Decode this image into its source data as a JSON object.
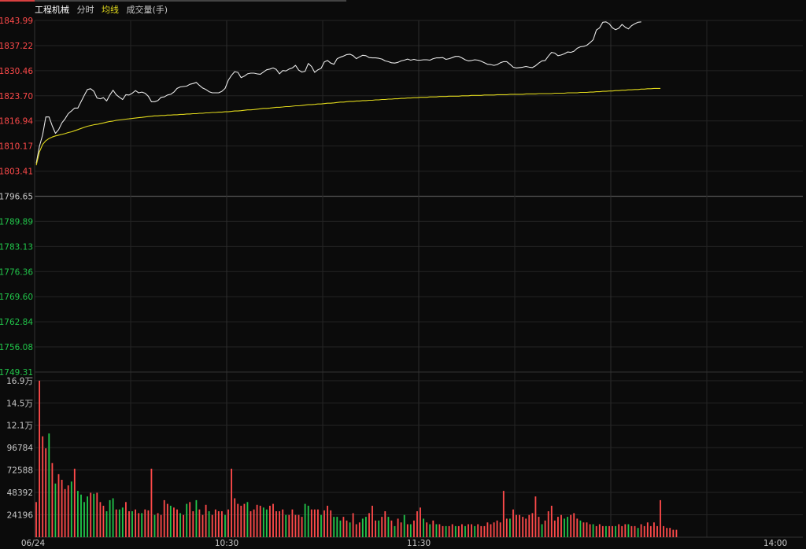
{
  "header": {
    "symbol": "工程机械",
    "mode": "分时",
    "avg_label": "均线",
    "volume_label": "成交量(手)"
  },
  "colors": {
    "up": "#ff4a4a",
    "down": "#21c54a",
    "neutral": "#c8c8c8",
    "price_line": "#e8e8e8",
    "avg_line": "#e0d81c",
    "grid": "#242424",
    "axis_line": "#333333",
    "pre_close_line": "#555555"
  },
  "chart_data": [
    {
      "type": "line",
      "title": "",
      "pre_close": 1796.65,
      "ylim": [
        1749.31,
        1843.99
      ],
      "y_ticks": [
        "1843.99",
        "1837.22",
        "1830.46",
        "1823.70",
        "1816.94",
        "1810.17",
        "1803.41",
        "1796.65",
        "1789.89",
        "1783.13",
        "1776.36",
        "1769.60",
        "1762.84",
        "1756.08",
        "1749.31"
      ],
      "x_tick_labels": [
        "06/24",
        "10:30",
        "11:30",
        "14:00"
      ],
      "x_minutes_total": 240,
      "series": [
        {
          "name": "",
          "values": [
            1805.5,
            1810.1,
            1813.2,
            1818.0,
            1818.0,
            1815.6,
            1813.6,
            1814.6,
            1816.4,
            1817.5,
            1818.9,
            1819.6,
            1820.4,
            1820.4,
            1822.1,
            1823.8,
            1825.4,
            1825.6,
            1824.9,
            1823.1,
            1822.9,
            1823.2,
            1822.3,
            1823.9,
            1825.2,
            1824.0,
            1823.3,
            1822.7,
            1824.0,
            1823.9,
            1824.4,
            1825.1,
            1824.5,
            1824.7,
            1824.4,
            1823.6,
            1822.1,
            1822.1,
            1822.4,
            1823.3,
            1823.4,
            1823.9,
            1824.1,
            1824.7,
            1825.7,
            1826.1,
            1826.2,
            1826.3,
            1826.8,
            1827.0,
            1827.3,
            1826.5,
            1825.8,
            1825.4,
            1824.8,
            1824.5,
            1824.5,
            1824.5,
            1824.9,
            1825.7,
            1827.9,
            1829.2,
            1830.2,
            1830.0,
            1828.6,
            1829.0,
            1829.6,
            1829.8,
            1829.8,
            1829.6,
            1829.5,
            1830.1,
            1830.7,
            1830.9,
            1831.2,
            1830.8,
            1829.6,
            1830.5,
            1830.4,
            1830.9,
            1831.2,
            1831.9,
            1830.6,
            1830.1,
            1830.3,
            1832.4,
            1831.6,
            1830.0,
            1830.7,
            1831.1,
            1832.8,
            1833.2,
            1832.5,
            1832.2,
            1833.7,
            1834.1,
            1834.4,
            1834.8,
            1834.9,
            1834.5,
            1833.7,
            1834.2,
            1834.6,
            1834.5,
            1834.0,
            1833.9,
            1833.9,
            1833.8,
            1833.6,
            1833.1,
            1832.9,
            1832.6,
            1832.5,
            1832.7,
            1833.1,
            1833.3,
            1833.6,
            1833.3,
            1833.5,
            1833.3,
            1833.3,
            1833.4,
            1833.4,
            1833.3,
            1833.7,
            1833.9,
            1833.9,
            1834.0,
            1833.5,
            1833.7,
            1834.0,
            1834.3,
            1834.3,
            1833.9,
            1833.4,
            1833.1,
            1833.2,
            1833.4,
            1833.3,
            1833.0,
            1832.6,
            1832.2,
            1832.1,
            1831.9,
            1832.1,
            1832.6,
            1832.9,
            1832.9,
            1832.2,
            1831.4,
            1831.2,
            1831.3,
            1831.4,
            1831.6,
            1831.4,
            1831.3,
            1831.8,
            1832.5,
            1833.1,
            1833.2,
            1834.4,
            1835.4,
            1835.2,
            1834.5,
            1834.7,
            1835.0,
            1835.5,
            1835.4,
            1835.7,
            1836.5,
            1836.9,
            1837.0,
            1837.3,
            1838.0,
            1838.8,
            1841.4,
            1842.0,
            1843.5,
            1843.6,
            1843.1,
            1842.0,
            1841.5,
            1841.9,
            1842.9,
            1842.2,
            1841.7,
            1842.6,
            1843.1,
            1843.5,
            1843.6
          ],
          "color_key": "price_line"
        },
        {
          "name": "",
          "values": [
            1805.0,
            1808.6,
            1810.6,
            1811.6,
            1812.2,
            1812.6,
            1812.9,
            1813.1,
            1813.3,
            1813.5,
            1813.8,
            1814.0,
            1814.3,
            1814.6,
            1814.9,
            1815.2,
            1815.5,
            1815.7,
            1815.9,
            1816.0,
            1816.2,
            1816.4,
            1816.6,
            1816.8,
            1816.9,
            1817.1,
            1817.2,
            1817.3,
            1817.4,
            1817.5,
            1817.6,
            1817.7,
            1817.8,
            1817.9,
            1818.0,
            1818.1,
            1818.2,
            1818.3,
            1818.3,
            1818.4,
            1818.4,
            1818.5,
            1818.5,
            1818.6,
            1818.6,
            1818.7,
            1818.7,
            1818.8,
            1818.8,
            1818.9,
            1818.9,
            1819.0,
            1819.0,
            1819.1,
            1819.1,
            1819.2,
            1819.2,
            1819.3,
            1819.3,
            1819.4,
            1819.4,
            1819.5,
            1819.6,
            1819.6,
            1819.7,
            1819.8,
            1819.9,
            1819.9,
            1820.0,
            1820.1,
            1820.2,
            1820.3,
            1820.3,
            1820.4,
            1820.5,
            1820.6,
            1820.6,
            1820.7,
            1820.8,
            1820.8,
            1820.9,
            1821.0,
            1821.0,
            1821.1,
            1821.2,
            1821.3,
            1821.3,
            1821.4,
            1821.5,
            1821.5,
            1821.6,
            1821.7,
            1821.7,
            1821.8,
            1821.9,
            1822.0,
            1822.0,
            1822.1,
            1822.2,
            1822.2,
            1822.3,
            1822.3,
            1822.4,
            1822.4,
            1822.5,
            1822.5,
            1822.6,
            1822.6,
            1822.7,
            1822.7,
            1822.8,
            1822.8,
            1822.9,
            1822.9,
            1823.0,
            1823.0,
            1823.1,
            1823.1,
            1823.2,
            1823.2,
            1823.3,
            1823.3,
            1823.3,
            1823.4,
            1823.4,
            1823.4,
            1823.5,
            1823.5,
            1823.5,
            1823.6,
            1823.6,
            1823.6,
            1823.6,
            1823.7,
            1823.7,
            1823.7,
            1823.8,
            1823.8,
            1823.8,
            1823.8,
            1823.9,
            1823.9,
            1823.9,
            1823.9,
            1824.0,
            1824.0,
            1824.0,
            1824.0,
            1824.1,
            1824.1,
            1824.1,
            1824.1,
            1824.1,
            1824.2,
            1824.2,
            1824.2,
            1824.2,
            1824.3,
            1824.3,
            1824.3,
            1824.3,
            1824.3,
            1824.4,
            1824.4,
            1824.4,
            1824.4,
            1824.5,
            1824.5,
            1824.5,
            1824.5,
            1824.6,
            1824.6,
            1824.6,
            1824.7,
            1824.7,
            1824.8,
            1824.8,
            1824.9,
            1824.9,
            1825.0,
            1825.0,
            1825.1,
            1825.1,
            1825.2,
            1825.2,
            1825.3,
            1825.3,
            1825.4,
            1825.4,
            1825.5,
            1825.5,
            1825.6,
            1825.6,
            1825.7,
            1825.7,
            1825.7
          ],
          "color_key": "avg_line"
        }
      ]
    },
    {
      "type": "bar",
      "title": "",
      "ylim": [
        0,
        169000
      ],
      "y_ticks": [
        "16.9万",
        "14.5万",
        "12.1万",
        "96784",
        "72588",
        "48392",
        "24196"
      ],
      "x_tick_labels": [
        "06/24",
        "10:30",
        "11:30",
        "14:00"
      ],
      "x_minutes_total": 240,
      "values": [
        38000,
        169000,
        109000,
        96000,
        112000,
        80000,
        58000,
        68000,
        62000,
        52000,
        56000,
        60000,
        74000,
        50000,
        46000,
        38000,
        44000,
        48000,
        47000,
        48000,
        38000,
        34000,
        28000,
        40000,
        42000,
        30000,
        30000,
        32000,
        38000,
        28000,
        28000,
        30000,
        26000,
        26000,
        30000,
        29000,
        74000,
        24000,
        26000,
        24000,
        40000,
        36000,
        34000,
        32000,
        30000,
        26000,
        24000,
        36000,
        38000,
        28000,
        40000,
        30000,
        24000,
        35000,
        28000,
        24000,
        30000,
        28000,
        28000,
        24000,
        30000,
        74000,
        42000,
        36000,
        34000,
        36000,
        38000,
        28000,
        30000,
        35000,
        34000,
        32000,
        30000,
        34000,
        36000,
        28000,
        28000,
        30000,
        24000,
        24000,
        30000,
        24000,
        24000,
        22000,
        36000,
        34000,
        30000,
        30000,
        30000,
        24000,
        29000,
        34000,
        29000,
        22000,
        22000,
        18000,
        22000,
        18000,
        16000,
        26000,
        14000,
        16000,
        20000,
        22000,
        26000,
        34000,
        18000,
        18000,
        22000,
        28000,
        22000,
        18000,
        12000,
        20000,
        16000,
        24000,
        14000,
        14000,
        18000,
        28000,
        32000,
        20000,
        16000,
        14000,
        18000,
        14000,
        14000,
        12000,
        12000,
        12000,
        14000,
        12000,
        12000,
        14000,
        12000,
        14000,
        14000,
        12000,
        14000,
        12000,
        12000,
        16000,
        14000,
        16000,
        18000,
        16000,
        50000,
        20000,
        20000,
        30000,
        24000,
        24000,
        22000,
        20000,
        24000,
        26000,
        44000,
        22000,
        14000,
        18000,
        28000,
        34000,
        18000,
        22000,
        24000,
        20000,
        22000,
        24000,
        26000,
        20000,
        18000,
        16000,
        16000,
        14000,
        14000,
        12000,
        14000,
        12000,
        12000,
        12000,
        12000,
        12000,
        14000,
        12000,
        14000,
        14000,
        12000,
        12000,
        10000,
        14000,
        12000,
        16000,
        12000,
        16000,
        12000,
        40000,
        12000,
        10000,
        10000,
        8000,
        8000
      ],
      "bar_colors": [
        "up",
        "up",
        "up",
        "up",
        "down",
        "up",
        "down",
        "up",
        "up",
        "up",
        "up",
        "down",
        "up",
        "down",
        "down",
        "down",
        "down",
        "up",
        "down",
        "up",
        "up",
        "up",
        "down",
        "down",
        "down",
        "up",
        "down",
        "down",
        "up",
        "up",
        "down",
        "up",
        "up",
        "down",
        "up",
        "up",
        "up",
        "down",
        "up",
        "up",
        "up",
        "up",
        "down",
        "up",
        "up",
        "down",
        "up",
        "down",
        "up",
        "up",
        "down",
        "up",
        "up",
        "up",
        "down",
        "up",
        "up",
        "up",
        "up",
        "down",
        "up",
        "up",
        "up",
        "up",
        "up",
        "up",
        "down",
        "up",
        "up",
        "up",
        "up",
        "down",
        "down",
        "up",
        "up",
        "up",
        "up",
        "up",
        "down",
        "up",
        "up",
        "up",
        "up",
        "up",
        "down",
        "down",
        "up",
        "up",
        "up",
        "down",
        "up",
        "up",
        "up",
        "down",
        "down",
        "down",
        "up",
        "up",
        "down",
        "up",
        "up",
        "up",
        "down",
        "down",
        "up",
        "up",
        "up",
        "down",
        "up",
        "up",
        "down",
        "up",
        "down",
        "up",
        "up",
        "down",
        "up",
        "down",
        "up",
        "up",
        "up",
        "down",
        "up",
        "down",
        "up",
        "down",
        "up",
        "up",
        "down",
        "up",
        "up",
        "down",
        "up",
        "up",
        "down",
        "up",
        "up",
        "down",
        "up",
        "up",
        "up",
        "up",
        "up",
        "up",
        "up",
        "up",
        "up",
        "up",
        "down",
        "up",
        "up",
        "up",
        "up",
        "up",
        "up",
        "up",
        "up",
        "up",
        "down",
        "up",
        "up",
        "up",
        "up",
        "up",
        "up",
        "down",
        "down",
        "up",
        "up",
        "up",
        "down",
        "up",
        "up",
        "up",
        "down",
        "up",
        "up",
        "up",
        "down",
        "up",
        "up",
        "down",
        "up",
        "up",
        "up",
        "down",
        "up",
        "up",
        "down",
        "up",
        "up",
        "up",
        "up",
        "up",
        "up",
        "up",
        "up",
        "up",
        "up",
        "up",
        "up"
      ]
    }
  ]
}
